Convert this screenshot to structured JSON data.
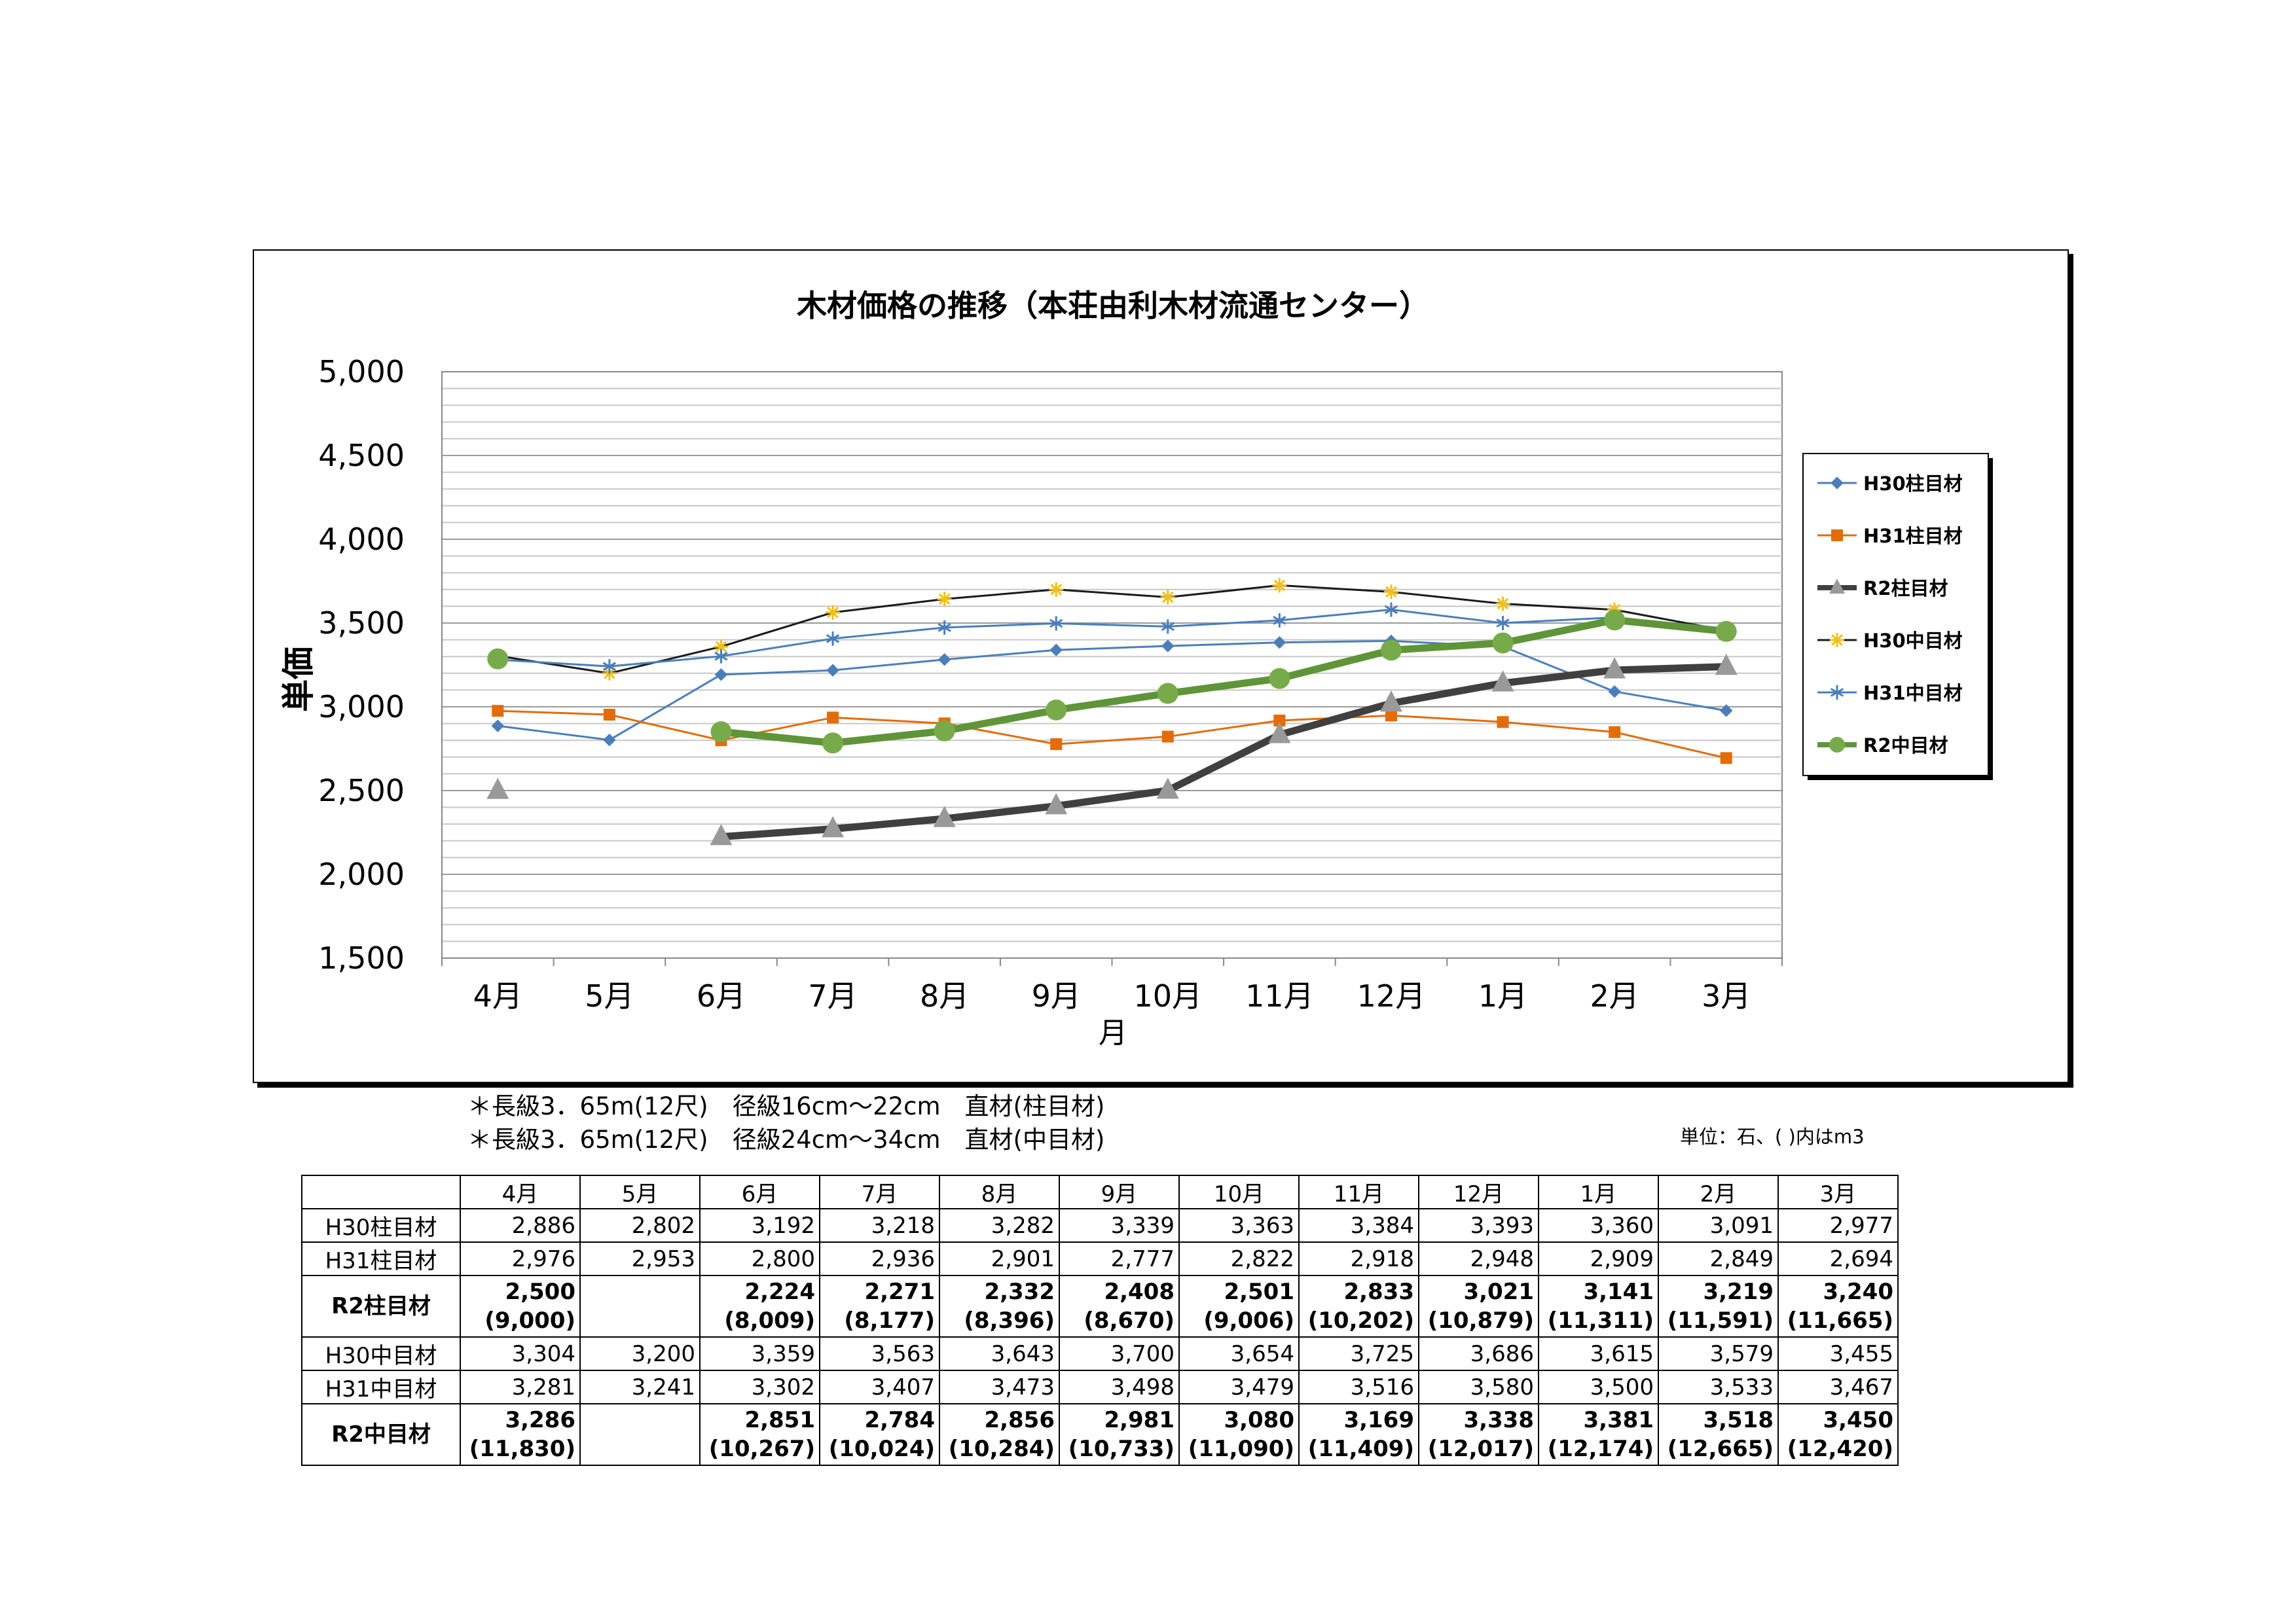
{
  "chart_data": {
    "type": "line",
    "title": "木材価格の推移（本荘由利木材流通センター）",
    "xlabel": "月",
    "ylabel": "単価",
    "categories": [
      "4月",
      "5月",
      "6月",
      "7月",
      "8月",
      "9月",
      "10月",
      "11月",
      "12月",
      "1月",
      "2月",
      "3月"
    ],
    "ylim": [
      1500,
      5000
    ],
    "yticks": [
      1500,
      2000,
      2500,
      3000,
      3500,
      4000,
      4500,
      5000
    ],
    "ytick_labels": [
      "1,500",
      "2,000",
      "2,500",
      "3,000",
      "3,500",
      "4,000",
      "4,500",
      "5,000"
    ],
    "grid": true,
    "legend_position": "right",
    "series": [
      {
        "name": "H30柱目材",
        "color": "#4a7ebb",
        "marker": "diamond",
        "width": 3,
        "values": [
          2886,
          2802,
          3192,
          3218,
          3282,
          3339,
          3363,
          3384,
          3393,
          3360,
          3091,
          2977
        ]
      },
      {
        "name": "H31柱目材",
        "color": "#e36c09",
        "marker": "square",
        "width": 3,
        "values": [
          2976,
          2953,
          2800,
          2936,
          2901,
          2777,
          2822,
          2918,
          2948,
          2909,
          2849,
          2694
        ]
      },
      {
        "name": "R2柱目材",
        "color": "#404040",
        "marker": "triangle",
        "marker_color": "#999999",
        "width": 11,
        "values": [
          2500,
          null,
          2224,
          2271,
          2332,
          2408,
          2501,
          2833,
          3021,
          3141,
          3219,
          3240
        ]
      },
      {
        "name": "H30中目材",
        "color": "#1a1a1a",
        "marker": "star",
        "marker_color": "#f2c014",
        "width": 3,
        "values": [
          3304,
          3200,
          3359,
          3563,
          3643,
          3700,
          3654,
          3725,
          3686,
          3615,
          3579,
          3455
        ]
      },
      {
        "name": "H31中目材",
        "color": "#4a7ebb",
        "marker": "asterisk",
        "width": 3,
        "values": [
          3281,
          3241,
          3302,
          3407,
          3473,
          3498,
          3479,
          3516,
          3580,
          3500,
          3533,
          3467
        ]
      },
      {
        "name": "R2中目材",
        "color": "#5f9538",
        "marker": "circle",
        "marker_color": "#77ab4a",
        "width": 11,
        "values": [
          3286,
          null,
          2851,
          2784,
          2856,
          2981,
          3080,
          3169,
          3338,
          3381,
          3518,
          3450
        ]
      }
    ]
  },
  "notes": {
    "line1": "＊長級3．65m(12尺)　径級16cm～22cm　直材(柱目材)",
    "line2": "＊長級3．65m(12尺)　径級24cm～34cm　直材(中目材)",
    "unit": "単位：石、( )内はm3"
  },
  "table": {
    "headers": [
      "4月",
      "5月",
      "6月",
      "7月",
      "8月",
      "9月",
      "10月",
      "11月",
      "12月",
      "1月",
      "2月",
      "3月"
    ],
    "rows": [
      {
        "label": "H30柱目材",
        "bold": false,
        "cells": [
          "2,886",
          "2,802",
          "3,192",
          "3,218",
          "3,282",
          "3,339",
          "3,363",
          "3,384",
          "3,393",
          "3,360",
          "3,091",
          "2,977"
        ]
      },
      {
        "label": "H31柱目材",
        "bold": false,
        "cells": [
          "2,976",
          "2,953",
          "2,800",
          "2,936",
          "2,901",
          "2,777",
          "2,822",
          "2,918",
          "2,948",
          "2,909",
          "2,849",
          "2,694"
        ]
      },
      {
        "label": "R2柱目材",
        "bold": true,
        "cells": [
          "2,500",
          "",
          "2,224",
          "2,271",
          "2,332",
          "2,408",
          "2,501",
          "2,833",
          "3,021",
          "3,141",
          "3,219",
          "3,240"
        ],
        "sub": [
          "(9,000)",
          "",
          "(8,009)",
          "(8,177)",
          "(8,396)",
          "(8,670)",
          "(9,006)",
          "(10,202)",
          "(10,879)",
          "(11,311)",
          "(11,591)",
          "(11,665)"
        ]
      },
      {
        "label": "H30中目材",
        "bold": false,
        "cells": [
          "3,304",
          "3,200",
          "3,359",
          "3,563",
          "3,643",
          "3,700",
          "3,654",
          "3,725",
          "3,686",
          "3,615",
          "3,579",
          "3,455"
        ]
      },
      {
        "label": "H31中目材",
        "bold": false,
        "cells": [
          "3,281",
          "3,241",
          "3,302",
          "3,407",
          "3,473",
          "3,498",
          "3,479",
          "3,516",
          "3,580",
          "3,500",
          "3,533",
          "3,467"
        ]
      },
      {
        "label": "R2中目材",
        "bold": true,
        "cells": [
          "3,286",
          "",
          "2,851",
          "2,784",
          "2,856",
          "2,981",
          "3,080",
          "3,169",
          "3,338",
          "3,381",
          "3,518",
          "3,450"
        ],
        "sub": [
          "(11,830)",
          "",
          "(10,267)",
          "(10,024)",
          "(10,284)",
          "(10,733)",
          "(11,090)",
          "(11,409)",
          "(12,017)",
          "(12,174)",
          "(12,665)",
          "(12,420)"
        ]
      }
    ]
  }
}
